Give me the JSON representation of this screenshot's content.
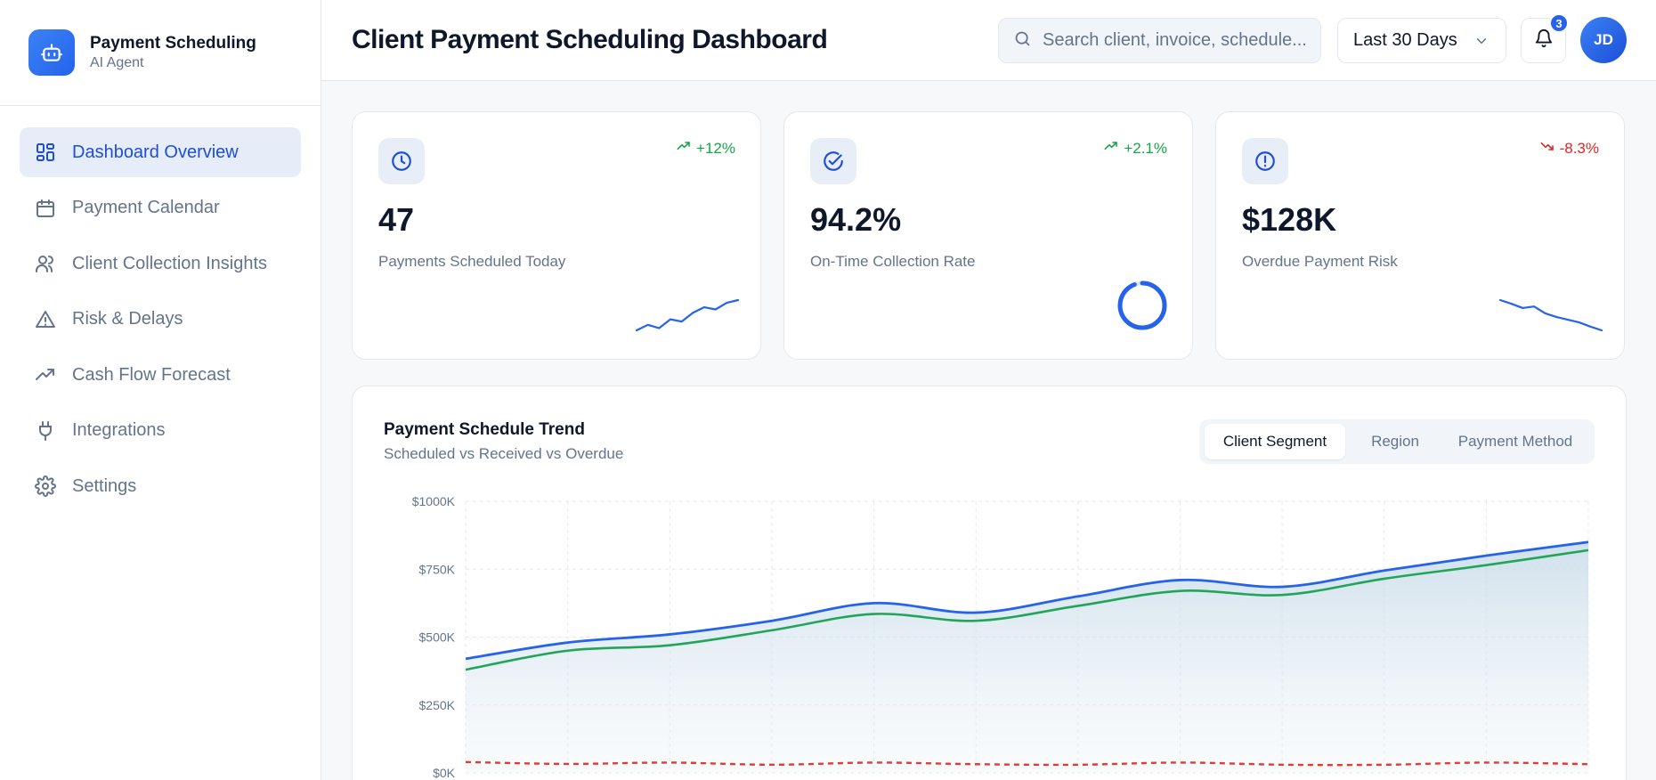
{
  "brand": {
    "title": "Payment Scheduling",
    "subtitle": "AI Agent"
  },
  "nav": [
    {
      "label": "Dashboard Overview",
      "icon": "grid-icon",
      "active": true
    },
    {
      "label": "Payment Calendar",
      "icon": "calendar-icon",
      "active": false
    },
    {
      "label": "Client Collection Insights",
      "icon": "users-icon",
      "active": false
    },
    {
      "label": "Risk & Delays",
      "icon": "warning-icon",
      "active": false
    },
    {
      "label": "Cash Flow Forecast",
      "icon": "trending-up-icon",
      "active": false
    },
    {
      "label": "Integrations",
      "icon": "plug-icon",
      "active": false
    },
    {
      "label": "Settings",
      "icon": "gear-icon",
      "active": false
    }
  ],
  "header": {
    "title": "Client Payment Scheduling Dashboard",
    "search_placeholder": "Search client, invoice, schedule...",
    "date_range": "Last 30 Days",
    "notifications": "3",
    "avatar_initials": "JD"
  },
  "kpis": [
    {
      "value": "47",
      "label": "Payments Scheduled Today",
      "delta": "+12%",
      "trend": "up",
      "icon": "clock-icon",
      "sparkline": [
        3,
        4,
        3.4,
        5,
        4.6,
        6.2,
        7.2,
        6.8,
        8,
        8.5
      ]
    },
    {
      "value": "94.2%",
      "label": "On-Time Collection Rate",
      "delta": "+2.1%",
      "trend": "up",
      "icon": "check-circle-icon",
      "ring_fraction": 0.942
    },
    {
      "value": "$128K",
      "label": "Overdue Payment Risk",
      "delta": "-8.3%",
      "trend": "down",
      "icon": "alert-circle-icon",
      "sparkline": [
        8.5,
        7.8,
        7.0,
        7.3,
        6.0,
        5.3,
        4.8,
        4.3,
        3.5,
        2.8
      ]
    }
  ],
  "colors": {
    "accent": "#2563eb",
    "scheduled": "#2563eb",
    "received": "#22a55a",
    "overdue": "#e53935",
    "up": "#16a34a",
    "down": "#dc2626"
  },
  "chart": {
    "title": "Payment Schedule Trend",
    "subtitle": "Scheduled vs Received vs Overdue",
    "tabs": [
      "Client Segment",
      "Region",
      "Payment Method"
    ],
    "active_tab": "Client Segment"
  },
  "chart_data": {
    "type": "line",
    "x": [
      0,
      1,
      2,
      3,
      4,
      5,
      6,
      7,
      8,
      9,
      10,
      11
    ],
    "ylim": [
      0,
      1000
    ],
    "yticks": [
      "$0K",
      "$250K",
      "$500K",
      "$750K",
      "$1000K"
    ],
    "grid": true,
    "series": [
      {
        "key": "scheduled",
        "values": [
          420,
          480,
          510,
          560,
          625,
          590,
          650,
          710,
          685,
          745,
          800,
          850
        ]
      },
      {
        "key": "received",
        "values": [
          380,
          450,
          470,
          525,
          585,
          560,
          615,
          670,
          655,
          715,
          765,
          820
        ]
      },
      {
        "key": "overdue",
        "values": [
          40,
          33,
          38,
          30,
          38,
          32,
          30,
          38,
          30,
          30,
          38,
          32
        ]
      }
    ]
  }
}
